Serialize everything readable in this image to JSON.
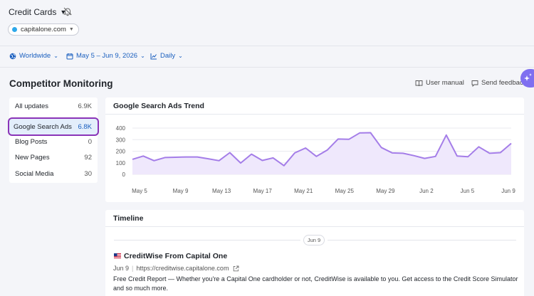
{
  "project": {
    "name": "Credit Cards",
    "domain": "capitalone.com"
  },
  "filters": {
    "region": "Worldwide",
    "date_range": "May 5 – Jun 9, 2026",
    "granularity": "Daily"
  },
  "page": {
    "title": "Competitor Monitoring",
    "user_manual": "User manual",
    "send_feedback": "Send feedback"
  },
  "sidebar": {
    "items": [
      {
        "label": "All updates",
        "count": "6.9K"
      },
      {
        "label": "Google Search Ads",
        "count": "6.8K",
        "active": true
      },
      {
        "label": "Blog Posts",
        "count": "0"
      },
      {
        "label": "New Pages",
        "count": "92"
      },
      {
        "label": "Social Media",
        "count": "30"
      }
    ]
  },
  "trend_card": {
    "title": "Google Search Ads Trend"
  },
  "chart_data": {
    "type": "area",
    "title": "Google Search Ads Trend",
    "xlabel": "",
    "ylabel": "",
    "ylim": [
      0,
      400
    ],
    "yticks": [
      0,
      100,
      200,
      300,
      400
    ],
    "x_tick_labels": [
      "May 5",
      "May 9",
      "May 13",
      "May 17",
      "May 21",
      "May 25",
      "May 29",
      "Jun 2",
      "Jun 5",
      "Jun 9"
    ],
    "grid": true,
    "series": [
      {
        "color": "#a47de8",
        "values": [
          130,
          158,
          118,
          145,
          148,
          150,
          150,
          135,
          118,
          188,
          98,
          175,
          120,
          142,
          75,
          185,
          228,
          155,
          210,
          305,
          303,
          358,
          360,
          232,
          185,
          182,
          162,
          138,
          155,
          340,
          158,
          152,
          238,
          182,
          188,
          268
        ]
      }
    ]
  },
  "timeline": {
    "title": "Timeline",
    "date": "Jun 9",
    "entry": {
      "title": "CreditWise From Capital One",
      "date": "Jun 9",
      "url": "https://creditwise.capitalone.com",
      "description": "Free Credit Report — Whether you're a Capital One cardholder or not, CreditWise is available to you. Get access to the Credit Score Simulator and so much more."
    }
  },
  "colors": {
    "accent": "#1a5fbf",
    "highlight_border": "#8a34b8",
    "series": "#a47de8",
    "fab": "#7f6ff0"
  }
}
